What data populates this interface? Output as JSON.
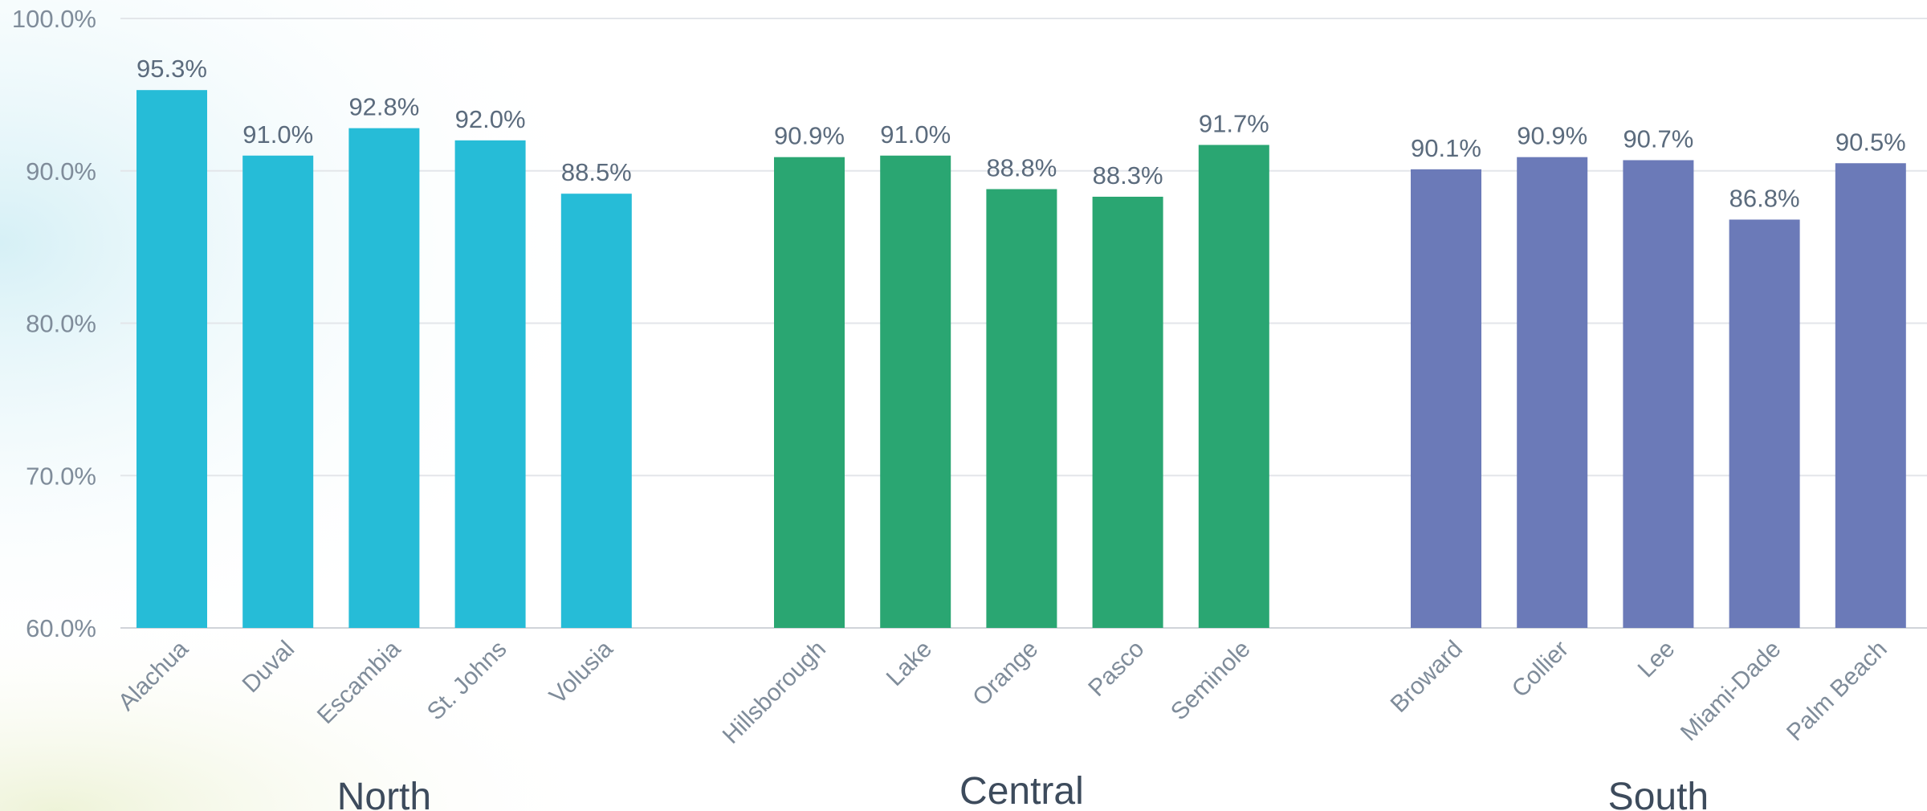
{
  "chart_data": {
    "type": "bar",
    "title": "",
    "xlabel": "",
    "ylabel": "",
    "ylim": [
      60,
      100
    ],
    "yticks": [
      "60.0%",
      "70.0%",
      "80.0%",
      "90.0%",
      "100.0%"
    ],
    "grid": true,
    "legend": "none",
    "groups": [
      {
        "name": "North",
        "color": "#26bcd7",
        "categories": [
          "Alachua",
          "Duval",
          "Escambia",
          "St. Johns",
          "Volusia"
        ],
        "values": [
          95.3,
          91.0,
          92.8,
          92.0,
          88.5
        ],
        "labels": [
          "95.3%",
          "91.0%",
          "92.8%",
          "92.0%",
          "88.5%"
        ]
      },
      {
        "name": "Central",
        "color": "#2aa672",
        "categories": [
          "Hillsborough",
          "Lake",
          "Orange",
          "Pasco",
          "Seminole"
        ],
        "values": [
          90.9,
          91.0,
          88.8,
          88.3,
          91.7
        ],
        "labels": [
          "90.9%",
          "91.0%",
          "88.8%",
          "88.3%",
          "91.7%"
        ]
      },
      {
        "name": "South",
        "color": "#6b7ab8",
        "categories": [
          "Broward",
          "Collier",
          "Lee",
          "Miami-Dade",
          "Palm Beach"
        ],
        "values": [
          90.1,
          90.9,
          90.7,
          86.8,
          90.5
        ],
        "labels": [
          "90.1%",
          "90.9%",
          "90.7%",
          "86.8%",
          "90.5%"
        ]
      }
    ]
  }
}
